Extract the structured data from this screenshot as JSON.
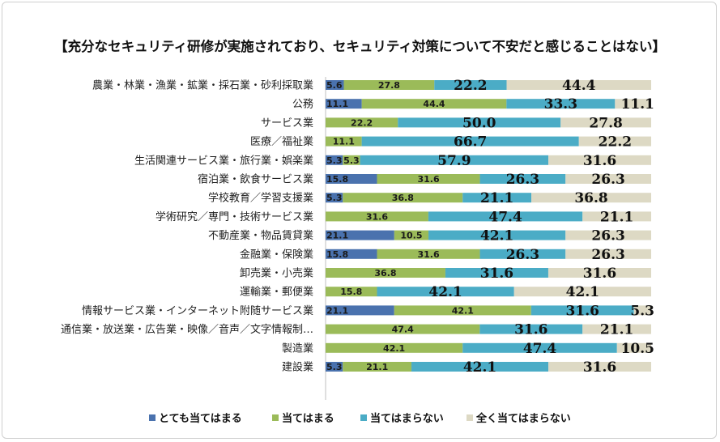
{
  "chart_data": {
    "type": "bar",
    "orientation": "horizontal",
    "stacked": "percent",
    "title": "【充分なセキュリティ研修が実施されており、セキュリティ対策について不安だと感じることはない】",
    "xlim": [
      0,
      100
    ],
    "grid": false,
    "legend_position": "bottom",
    "categories": [
      "農業・林業・漁業・鉱業・採石業・砂利採取業",
      "公務",
      "サービス業",
      "医療／福祉業",
      "生活関連サービス業・旅行業・娯楽業",
      "宿泊業・飲食サービス業",
      "学校教育／学習支援業",
      "学術研究／専門・技術サービス業",
      "不動産業・物品賃貸業",
      "金融業・保険業",
      "卸売業・小売業",
      "運輸業・郵便業",
      "情報サービス業・インターネット附随サービス業",
      "通信業・放送業・広告業・映像／音声／文字情報制…",
      "製造業",
      "建設業"
    ],
    "series": [
      {
        "name": "とても当てはまる",
        "color": "#4a72ae",
        "values": [
          5.6,
          11.1,
          0,
          0,
          5.3,
          15.8,
          5.3,
          0,
          21.1,
          15.8,
          0,
          0,
          21.1,
          0,
          0,
          5.3
        ]
      },
      {
        "name": "当てはまる",
        "color": "#9bbb59",
        "values": [
          27.8,
          44.4,
          22.2,
          11.1,
          5.3,
          31.6,
          36.8,
          31.6,
          10.5,
          31.6,
          36.8,
          15.8,
          42.1,
          47.4,
          42.1,
          21.1
        ]
      },
      {
        "name": "当てはまらない",
        "color": "#4bacc6",
        "values": [
          22.2,
          33.3,
          50.0,
          66.7,
          57.9,
          26.3,
          21.1,
          47.4,
          42.1,
          26.3,
          31.6,
          42.1,
          31.6,
          31.6,
          47.4,
          42.1
        ]
      },
      {
        "name": "全く当てはまらない",
        "color": "#ddd9c4",
        "values": [
          44.4,
          11.1,
          27.8,
          22.2,
          31.6,
          26.3,
          36.8,
          21.1,
          26.3,
          26.3,
          31.6,
          42.1,
          5.3,
          21.1,
          10.5,
          31.6
        ]
      }
    ],
    "labels": [
      [
        "5.6",
        "27.8",
        "22.2",
        "44.4"
      ],
      [
        "11.1",
        "44.4",
        "33.3",
        "11.1"
      ],
      [
        "",
        "22.2",
        "50.0",
        "27.8"
      ],
      [
        "",
        "11.1",
        "66.7",
        "22.2"
      ],
      [
        "5.3",
        "5.3",
        "57.9",
        "31.6"
      ],
      [
        "15.8",
        "31.6",
        "26.3",
        "26.3"
      ],
      [
        "5.3",
        "36.8",
        "21.1",
        "36.8"
      ],
      [
        "",
        "31.6",
        "47.4",
        "21.1"
      ],
      [
        "21.1",
        "10.5",
        "42.1",
        "26.3"
      ],
      [
        "15.8",
        "31.6",
        "26.3",
        "26.3"
      ],
      [
        "",
        "36.8",
        "31.6",
        "31.6"
      ],
      [
        "",
        "15.8",
        "42.1",
        "42.1"
      ],
      [
        "21.1",
        "42.1",
        "31.6",
        "5.3"
      ],
      [
        "",
        "47.4",
        "31.6",
        "21.1"
      ],
      [
        "",
        "42.1",
        "47.4",
        "10.5"
      ],
      [
        "5.3",
        "21.1",
        "42.1",
        "31.6"
      ]
    ]
  }
}
